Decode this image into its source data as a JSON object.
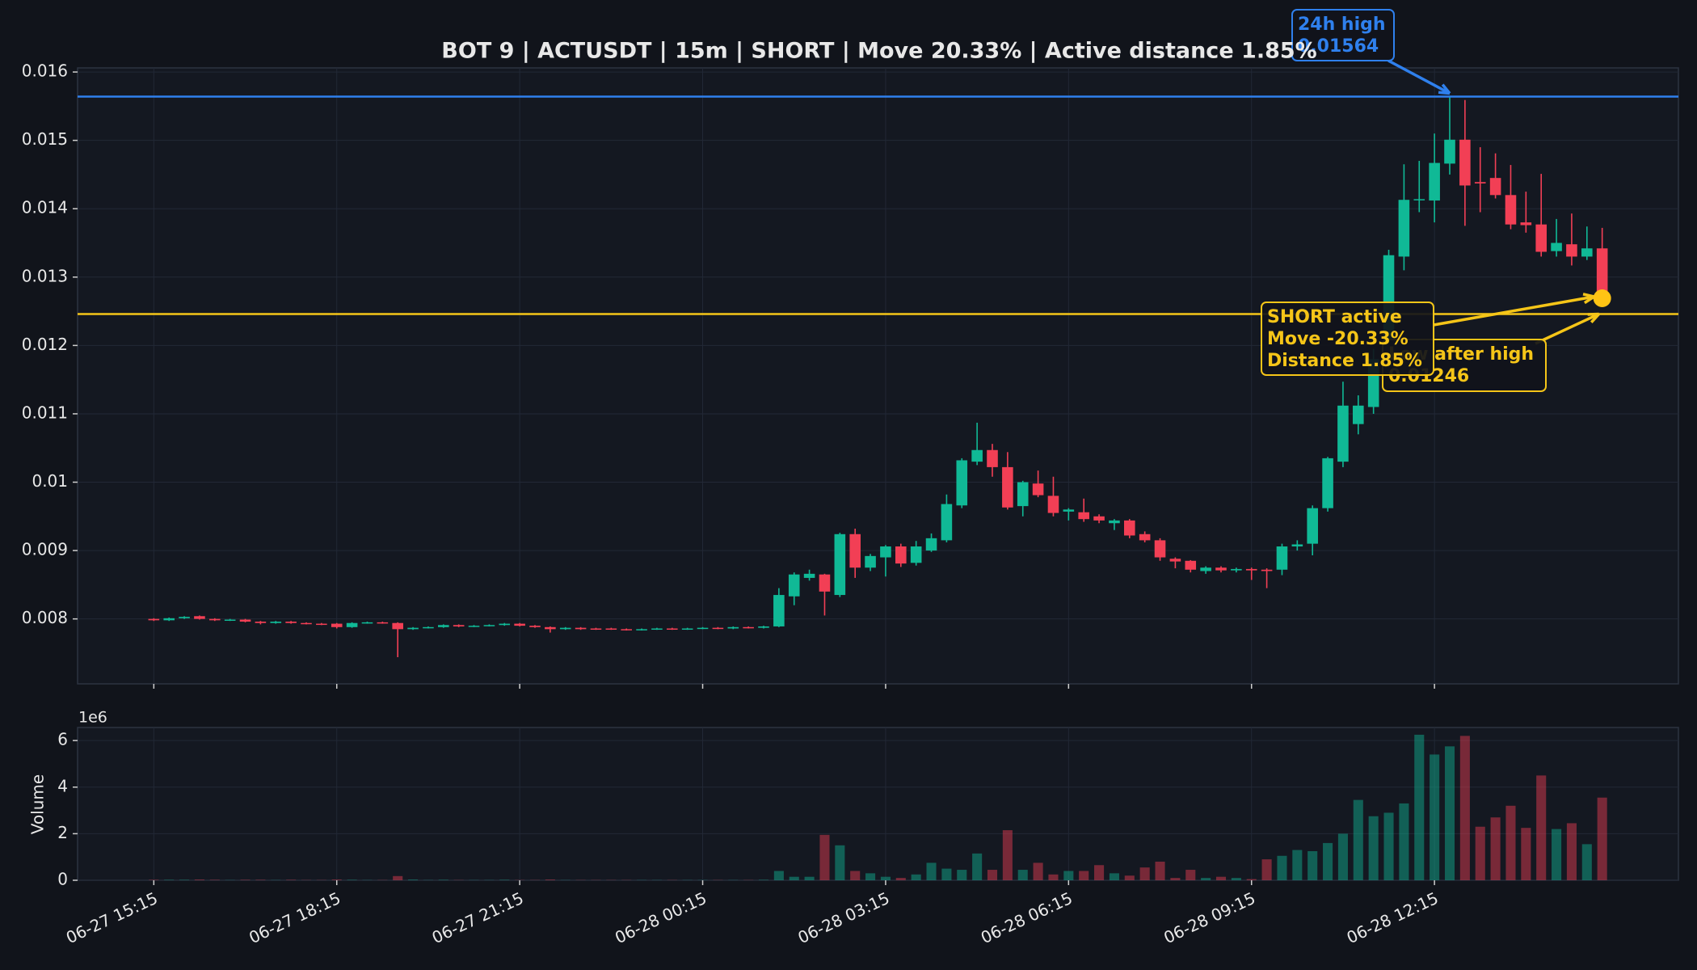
{
  "chart_data": {
    "type": "candlestick",
    "title": "BOT 9 | ACTUSDT | 15m | SHORT | Move 20.33% | Active distance 1.85%",
    "categories": [
      "06-27 15:15",
      null,
      null,
      null,
      null,
      null,
      null,
      null,
      null,
      null,
      null,
      null,
      "06-27 18:15",
      null,
      null,
      null,
      null,
      null,
      null,
      null,
      null,
      null,
      null,
      null,
      "06-27 21:15",
      null,
      null,
      null,
      null,
      null,
      null,
      null,
      null,
      null,
      null,
      null,
      "06-28 00:15",
      null,
      null,
      null,
      null,
      null,
      null,
      null,
      null,
      null,
      null,
      null,
      "06-28 03:15",
      null,
      null,
      null,
      null,
      null,
      null,
      null,
      null,
      null,
      null,
      null,
      "06-28 06:15",
      null,
      null,
      null,
      null,
      null,
      null,
      null,
      null,
      null,
      null,
      null,
      "06-28 09:15",
      null,
      null,
      null,
      null,
      null,
      null,
      null,
      null,
      null,
      null,
      null,
      "06-28 12:15",
      null,
      null,
      null,
      null,
      null,
      null,
      null,
      null,
      null,
      null,
      null
    ],
    "xlim": [
      -5,
      100
    ],
    "open": [
      0.008,
      0.00798,
      0.00801,
      0.00804,
      0.008,
      0.00798,
      0.00799,
      0.00796,
      0.00794,
      0.00796,
      0.00794,
      0.00793,
      0.00793,
      0.00788,
      0.00794,
      0.00795,
      0.00794,
      0.00785,
      0.00787,
      0.00788,
      0.00791,
      0.00789,
      0.0079,
      0.00791,
      0.00793,
      0.0079,
      0.00788,
      0.00785,
      0.00787,
      0.00786,
      0.00786,
      0.00785,
      0.00784,
      0.00785,
      0.00786,
      0.00785,
      0.00786,
      0.00787,
      0.00786,
      0.00788,
      0.00787,
      0.00789,
      0.00833,
      0.0086,
      0.00865,
      0.00835,
      0.00924,
      0.00875,
      0.0089,
      0.00906,
      0.00882,
      0.009,
      0.00915,
      0.00966,
      0.0103,
      0.01047,
      0.01022,
      0.00965,
      0.00998,
      0.0098,
      0.00957,
      0.00956,
      0.0095,
      0.0094,
      0.00944,
      0.00924,
      0.00915,
      0.00888,
      0.00885,
      0.0087,
      0.00875,
      0.00871,
      0.00873,
      0.00872,
      0.00872,
      0.00906,
      0.0091,
      0.00962,
      0.0103,
      0.01085,
      0.0111,
      0.0118,
      0.0133,
      0.01413,
      0.01412,
      0.01466,
      0.01501,
      0.01439,
      0.01445,
      0.0142,
      0.0138,
      0.01377,
      0.01338,
      0.01348,
      0.0133,
      0.01342
    ],
    "high": [
      0.00801,
      0.00802,
      0.00804,
      0.00805,
      0.00801,
      0.008,
      0.008,
      0.00797,
      0.00797,
      0.00797,
      0.00795,
      0.00794,
      0.00794,
      0.00795,
      0.00796,
      0.00796,
      0.00795,
      0.00788,
      0.00789,
      0.00792,
      0.00792,
      0.00791,
      0.00792,
      0.00794,
      0.00794,
      0.00791,
      0.00789,
      0.00788,
      0.00788,
      0.00787,
      0.00787,
      0.00786,
      0.00786,
      0.00787,
      0.00787,
      0.00787,
      0.00788,
      0.00788,
      0.00789,
      0.00789,
      0.0079,
      0.00845,
      0.00868,
      0.00872,
      0.00866,
      0.00926,
      0.00932,
      0.00895,
      0.00908,
      0.0091,
      0.00914,
      0.00925,
      0.00982,
      0.01035,
      0.01087,
      0.01056,
      0.01044,
      0.01002,
      0.01017,
      0.01008,
      0.00962,
      0.00976,
      0.00953,
      0.00946,
      0.00946,
      0.00928,
      0.00918,
      0.0089,
      0.00886,
      0.00877,
      0.00877,
      0.00875,
      0.00875,
      0.00874,
      0.0091,
      0.00915,
      0.00966,
      0.01037,
      0.01147,
      0.01127,
      0.01195,
      0.0134,
      0.01465,
      0.0147,
      0.0151,
      0.01564,
      0.01559,
      0.0149,
      0.01481,
      0.01464,
      0.01425,
      0.01451,
      0.01385,
      0.01393,
      0.01374,
      0.01372
    ],
    "low": [
      0.00797,
      0.00797,
      0.008,
      0.00799,
      0.00797,
      0.00797,
      0.00795,
      0.00792,
      0.00793,
      0.00793,
      0.00792,
      0.00791,
      0.00786,
      0.00787,
      0.00793,
      0.00793,
      0.00744,
      0.00784,
      0.00786,
      0.00787,
      0.00788,
      0.00788,
      0.00789,
      0.0079,
      0.00789,
      0.00787,
      0.0078,
      0.00784,
      0.00784,
      0.00784,
      0.00784,
      0.00783,
      0.00783,
      0.00784,
      0.00784,
      0.00784,
      0.00785,
      0.00785,
      0.00785,
      0.00786,
      0.00786,
      0.00788,
      0.0082,
      0.00856,
      0.00805,
      0.00832,
      0.0086,
      0.0087,
      0.00862,
      0.00876,
      0.00878,
      0.00898,
      0.00912,
      0.00962,
      0.01025,
      0.01008,
      0.0096,
      0.0095,
      0.00978,
      0.0095,
      0.00944,
      0.00942,
      0.0094,
      0.0093,
      0.00918,
      0.00912,
      0.00885,
      0.00874,
      0.00868,
      0.00866,
      0.00868,
      0.00868,
      0.00857,
      0.00845,
      0.00864,
      0.009,
      0.00893,
      0.00957,
      0.01022,
      0.0107,
      0.011,
      0.0116,
      0.0131,
      0.01395,
      0.0138,
      0.0145,
      0.01375,
      0.01395,
      0.01415,
      0.0137,
      0.01365,
      0.0133,
      0.0133,
      0.01317,
      0.01325,
      0.01265
    ],
    "close": [
      0.00798,
      0.00801,
      0.00803,
      0.008,
      0.00798,
      0.00799,
      0.00796,
      0.00794,
      0.00796,
      0.00794,
      0.00793,
      0.00792,
      0.00788,
      0.00794,
      0.00795,
      0.00794,
      0.00785,
      0.00787,
      0.00788,
      0.00791,
      0.00789,
      0.0079,
      0.00791,
      0.00793,
      0.0079,
      0.00788,
      0.00785,
      0.00787,
      0.00785,
      0.00785,
      0.00785,
      0.00784,
      0.00785,
      0.00786,
      0.00785,
      0.00786,
      0.00787,
      0.00786,
      0.00788,
      0.00787,
      0.00789,
      0.00835,
      0.00865,
      0.00866,
      0.0084,
      0.00924,
      0.00875,
      0.00892,
      0.00906,
      0.00881,
      0.00906,
      0.00918,
      0.00968,
      0.01032,
      0.01047,
      0.01022,
      0.00963,
      0.01,
      0.00981,
      0.00955,
      0.0096,
      0.00946,
      0.00944,
      0.00944,
      0.00922,
      0.00915,
      0.0089,
      0.00884,
      0.00872,
      0.00875,
      0.00871,
      0.00873,
      0.00871,
      0.0087,
      0.00906,
      0.00909,
      0.00962,
      0.01035,
      0.01112,
      0.01112,
      0.0118,
      0.01332,
      0.01413,
      0.01414,
      0.01467,
      0.01501,
      0.01434,
      0.01437,
      0.0142,
      0.01377,
      0.01376,
      0.01337,
      0.0135,
      0.0133,
      0.01342,
      0.01269
    ],
    "volume": [
      0.02,
      0.02,
      0.02,
      0.03,
      0.02,
      0.01,
      0.02,
      0.02,
      0.01,
      0.02,
      0.01,
      0.01,
      0.03,
      0.02,
      0.01,
      0.01,
      0.18,
      0.03,
      0.01,
      0.02,
      0.01,
      0.01,
      0.01,
      0.02,
      0.01,
      0.01,
      0.03,
      0.01,
      0.01,
      0.01,
      0.01,
      0.01,
      0.01,
      0.01,
      0.01,
      0.01,
      0.01,
      0.01,
      0.01,
      0.01,
      0.02,
      0.4,
      0.15,
      0.15,
      1.95,
      1.5,
      0.4,
      0.3,
      0.15,
      0.1,
      0.25,
      0.75,
      0.5,
      0.45,
      1.15,
      0.45,
      2.15,
      0.45,
      0.75,
      0.25,
      0.4,
      0.4,
      0.65,
      0.3,
      0.2,
      0.55,
      0.8,
      0.1,
      0.45,
      0.1,
      0.15,
      0.1,
      0.05,
      0.9,
      1.05,
      1.3,
      1.25,
      1.6,
      2.0,
      3.45,
      2.75,
      2.9,
      3.3,
      6.25,
      5.4,
      5.75,
      6.2,
      2.3,
      2.7,
      3.2,
      2.25,
      4.5,
      2.2,
      2.45,
      1.55,
      3.55
    ],
    "up_color": "#10b996",
    "down_color": "#f23f55",
    "ylim": [
      0.00705,
      0.01606
    ],
    "yticks": [
      0.008,
      0.009,
      0.01,
      0.011,
      0.012,
      0.013,
      0.014,
      0.015,
      0.016
    ],
    "volume_label": "Volume",
    "volume_offset_label": "1e6",
    "volume_ylim": [
      0,
      6.56
    ],
    "volume_yticks": [
      0,
      2,
      4,
      6
    ],
    "grid": true,
    "hlines": [
      {
        "label": "24h high",
        "value": 0.01564,
        "color": "#2f80ed"
      },
      {
        "label": "Low after high",
        "value": 0.01246,
        "color": "#f5c518"
      }
    ],
    "signal_lines": [
      "SHORT active",
      "Move -20.33%",
      "Distance 1.85%"
    ]
  }
}
